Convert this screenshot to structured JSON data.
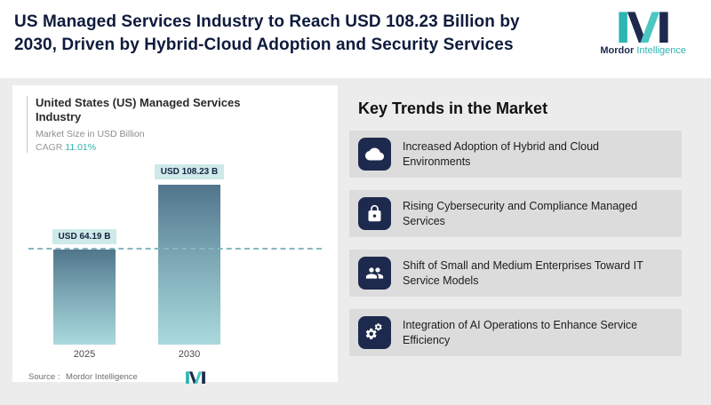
{
  "header": {
    "title": "US Managed Services Industry to Reach USD 108.23 Billion by 2030, Driven by Hybrid-Cloud Adoption and Security Services"
  },
  "logo": {
    "name_primary": "Mordor",
    "name_secondary": "Intelligence"
  },
  "chart_card": {
    "title": "United States (US) Managed Services Industry",
    "subtitle": "Market Size in USD Billion",
    "cagr_label": "CAGR",
    "cagr_value": "11.01%",
    "source_label": "Source :",
    "source_value": "Mordor Intelligence"
  },
  "chart_data": {
    "type": "bar",
    "title": "United States (US) Managed Services Industry",
    "ylabel": "Market Size in USD Billion",
    "cagr_percent": 11.01,
    "categories": [
      "2025",
      "2030"
    ],
    "values": [
      64.19,
      108.23
    ],
    "value_labels": [
      "USD 64.19 B",
      "USD 108.23 B"
    ],
    "ylim": [
      0,
      120
    ],
    "reference_line_value": 64.19,
    "grid": false,
    "legend": false,
    "bar_gradient_top": "#51758c",
    "bar_gradient_bottom": "#a9d9dd",
    "label_chip_bg": "#cde9e9"
  },
  "trends": {
    "heading": "Key Trends in the Market",
    "items": [
      {
        "icon": "cloud-icon",
        "text": "Increased Adoption of Hybrid and Cloud Environments"
      },
      {
        "icon": "lock-icon",
        "text": "Rising Cybersecurity and Compliance Managed Services"
      },
      {
        "icon": "people-icon",
        "text": "Shift of Small and Medium Enterprises Toward IT Service Models"
      },
      {
        "icon": "gears-icon",
        "text": "Integration of AI Operations to Enhance Service Efficiency"
      }
    ]
  },
  "colors": {
    "accent_teal": "#2cb5b2",
    "navy": "#0f1b3d",
    "tile_navy": "#1e2a4d",
    "main_bg": "#ececec",
    "row_bg": "#dcdcdc",
    "dashed_line": "#87b6c2"
  }
}
